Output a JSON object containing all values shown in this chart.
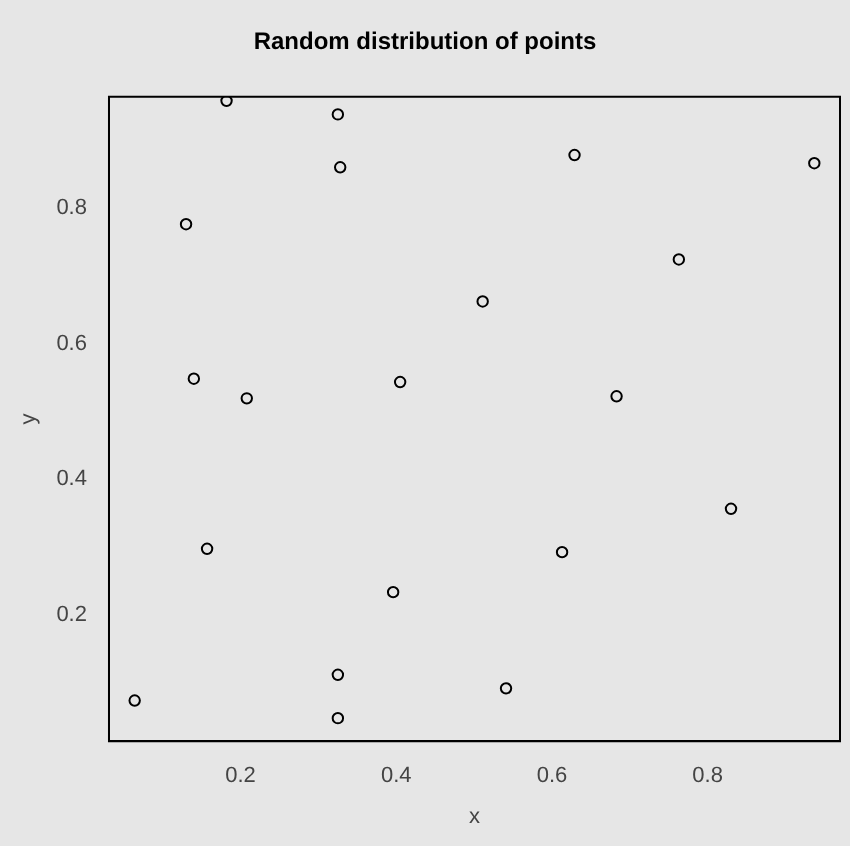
{
  "chart_data": {
    "type": "scatter",
    "title": "Random distribution of points",
    "xlabel": "x",
    "ylabel": "y",
    "x": [
      0.064,
      0.182,
      0.325,
      0.328,
      0.13,
      0.14,
      0.208,
      0.157,
      0.325,
      0.325,
      0.396,
      0.405,
      0.511,
      0.629,
      0.937,
      0.763,
      0.683,
      0.613,
      0.83,
      0.541
    ],
    "values": [
      0.073,
      0.958,
      0.938,
      0.86,
      0.776,
      0.548,
      0.519,
      0.297,
      0.111,
      0.047,
      0.233,
      0.543,
      0.662,
      0.878,
      0.866,
      0.724,
      0.522,
      0.292,
      0.356,
      0.091
    ],
    "color": "#000000",
    "marker": "circle",
    "grid": false,
    "legend": false,
    "xlim": [
      0.031,
      0.97
    ],
    "ylim": [
      0.013,
      0.964
    ],
    "xticks": [
      0.2,
      0.4,
      0.6,
      0.8
    ],
    "yticks": [
      0.2,
      0.4,
      0.6,
      0.8
    ]
  }
}
